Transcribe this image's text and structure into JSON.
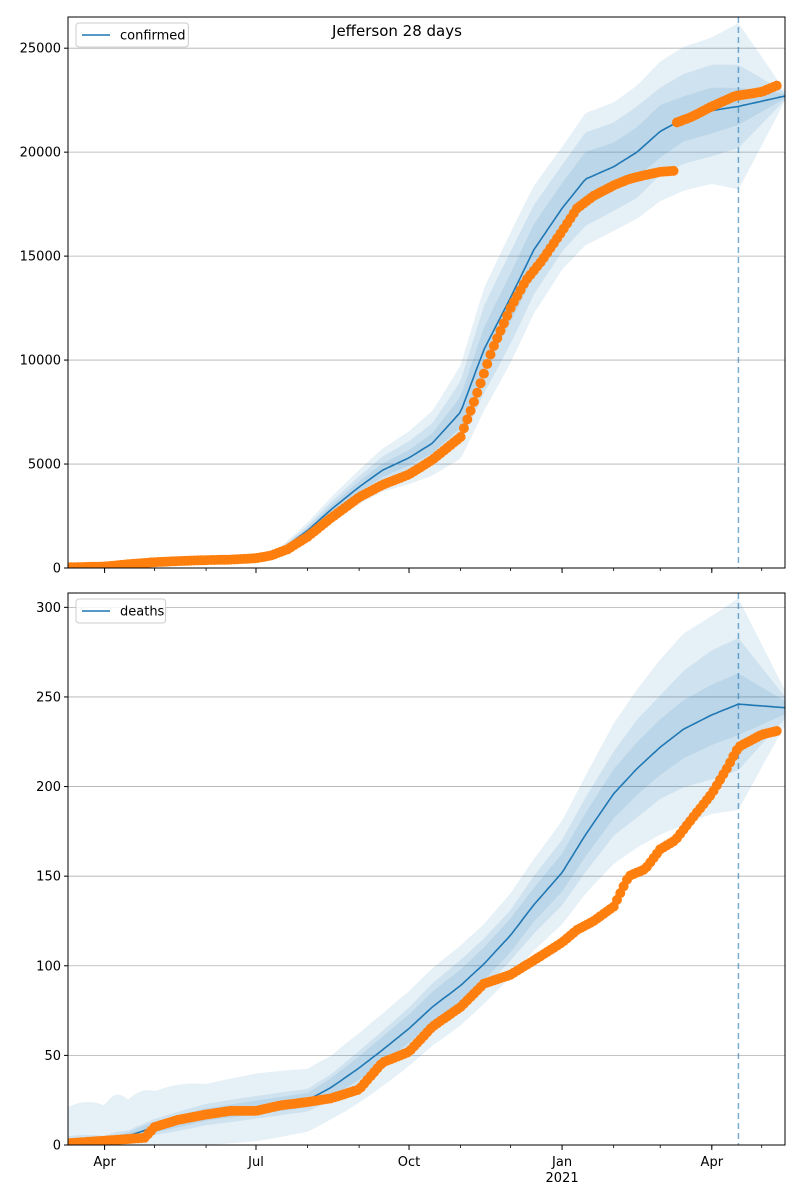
{
  "figure": {
    "title": "Jefferson 28 days",
    "colors": {
      "model_line": "#1f77b4",
      "band": "#1f77b4",
      "observed": "#ff7f0e",
      "grid": "#b0b0b0"
    }
  },
  "chart_data": [
    {
      "type": "line",
      "name": "confirmed-panel",
      "legend": [
        "confirmed"
      ],
      "legend_position": "upper left",
      "grid": "horizontal",
      "xlim": [
        "2020-03-10",
        "2021-05-15"
      ],
      "ylim": [
        0,
        26500
      ],
      "yticks": [
        0,
        5000,
        10000,
        15000,
        20000,
        25000
      ],
      "xtick_labels": [
        "Apr",
        "Jul",
        "Oct",
        "Jan",
        "Apr"
      ],
      "xtick_dates": [
        "2020-04-01",
        "2020-07-01",
        "2020-10-01",
        "2021-01-01",
        "2021-04-01"
      ],
      "forecast_date": "2021-04-17",
      "model": {
        "name": "confirmed",
        "x": [
          "2020-03-10",
          "2020-04-01",
          "2020-05-01",
          "2020-06-01",
          "2020-07-01",
          "2020-07-15",
          "2020-08-01",
          "2020-08-15",
          "2020-09-01",
          "2020-09-15",
          "2020-10-01",
          "2020-10-15",
          "2020-11-01",
          "2020-11-15",
          "2020-12-01",
          "2020-12-15",
          "2021-01-01",
          "2021-01-15",
          "2021-02-01",
          "2021-02-15",
          "2021-03-01",
          "2021-03-15",
          "2021-04-01",
          "2021-04-17",
          "2021-05-15"
        ],
        "y": [
          50,
          80,
          180,
          280,
          450,
          800,
          1800,
          2800,
          3900,
          4700,
          5300,
          6000,
          7500,
          10500,
          13000,
          15300,
          17300,
          18700,
          19300,
          20000,
          21000,
          21600,
          22000,
          22200,
          22700
        ],
        "band_inner_pct": [
          0.05,
          0.05,
          0.05,
          0.05,
          0.06,
          0.07,
          0.07,
          0.07,
          0.07,
          0.07,
          0.07,
          0.08,
          0.1,
          0.1,
          0.09,
          0.08,
          0.07,
          0.07,
          0.06,
          0.06,
          0.06,
          0.05,
          0.05,
          0.04,
          0.005
        ],
        "band_mid_pct": [
          0.1,
          0.1,
          0.1,
          0.1,
          0.11,
          0.12,
          0.13,
          0.13,
          0.13,
          0.14,
          0.15,
          0.16,
          0.2,
          0.2,
          0.17,
          0.14,
          0.12,
          0.12,
          0.11,
          0.11,
          0.1,
          0.1,
          0.1,
          0.09,
          0.008
        ],
        "band_outer_pct": [
          0.2,
          0.2,
          0.2,
          0.2,
          0.2,
          0.21,
          0.21,
          0.21,
          0.21,
          0.22,
          0.24,
          0.26,
          0.3,
          0.28,
          0.24,
          0.2,
          0.17,
          0.17,
          0.16,
          0.16,
          0.16,
          0.16,
          0.16,
          0.18,
          0.01
        ]
      },
      "observed": {
        "x": [
          "2020-03-10",
          "2020-04-01",
          "2020-04-15",
          "2020-05-01",
          "2020-05-15",
          "2020-06-01",
          "2020-06-15",
          "2020-07-01",
          "2020-07-10",
          "2020-07-20",
          "2020-08-01",
          "2020-08-15",
          "2020-09-01",
          "2020-09-15",
          "2020-10-01",
          "2020-10-15",
          "2020-11-01",
          "2020-11-10",
          "2020-11-20",
          "2020-12-01",
          "2020-12-10",
          "2020-12-20",
          "2021-01-01",
          "2021-01-10",
          "2021-01-20",
          "2021-02-01",
          "2021-02-10",
          "2021-02-20",
          "2021-03-01",
          "2021-03-09",
          "2021-03-10",
          "2021-03-20",
          "2021-04-01",
          "2021-04-15",
          "2021-05-01",
          "2021-05-10"
        ],
        "y": [
          30,
          70,
          180,
          280,
          330,
          380,
          400,
          470,
          600,
          900,
          1500,
          2400,
          3400,
          4000,
          4500,
          5200,
          6300,
          8200,
          10500,
          12500,
          13800,
          14800,
          16200,
          17300,
          17900,
          18400,
          18700,
          18900,
          19050,
          19100,
          21400,
          21700,
          22200,
          22700,
          22900,
          23200
        ]
      }
    },
    {
      "type": "line",
      "name": "deaths-panel",
      "legend": [
        "deaths"
      ],
      "legend_position": "upper left",
      "grid": "horizontal",
      "xlim": [
        "2020-03-10",
        "2021-05-15"
      ],
      "ylim": [
        0,
        308
      ],
      "yticks": [
        0,
        50,
        100,
        150,
        200,
        250,
        300
      ],
      "xtick_labels": [
        "Apr",
        "Jul",
        "Oct",
        "Jan",
        "Apr"
      ],
      "xtick_dates": [
        "2020-04-01",
        "2020-07-01",
        "2020-10-01",
        "2021-01-01",
        "2021-04-01"
      ],
      "xtick_year_label": "2021",
      "forecast_date": "2021-04-17",
      "model": {
        "name": "deaths",
        "x": [
          "2020-03-10",
          "2020-04-01",
          "2020-04-15",
          "2020-05-01",
          "2020-06-01",
          "2020-07-01",
          "2020-08-01",
          "2020-08-15",
          "2020-09-01",
          "2020-09-15",
          "2020-10-01",
          "2020-10-15",
          "2020-11-01",
          "2020-11-15",
          "2020-12-01",
          "2020-12-15",
          "2021-01-01",
          "2021-01-15",
          "2021-02-01",
          "2021-02-15",
          "2021-03-01",
          "2021-03-15",
          "2021-04-01",
          "2021-04-17",
          "2021-05-15"
        ],
        "y": [
          1,
          2,
          5,
          10,
          17,
          21,
          25,
          32,
          43,
          53,
          65,
          77,
          89,
          101,
          117,
          134,
          152,
          173,
          196,
          210,
          222,
          232,
          240,
          246,
          244
        ],
        "band_inner_pct": [
          0.6,
          0.6,
          0.4,
          0.3,
          0.2,
          0.18,
          0.16,
          0.16,
          0.15,
          0.14,
          0.12,
          0.11,
          0.1,
          0.09,
          0.08,
          0.07,
          0.07,
          0.07,
          0.07,
          0.07,
          0.07,
          0.07,
          0.07,
          0.07,
          0.015
        ],
        "band_mid_pct": [
          4.0,
          1.5,
          0.6,
          0.45,
          0.35,
          0.3,
          0.25,
          0.23,
          0.22,
          0.2,
          0.18,
          0.17,
          0.16,
          0.14,
          0.12,
          0.12,
          0.12,
          0.12,
          0.12,
          0.13,
          0.13,
          0.14,
          0.15,
          0.15,
          0.025
        ],
        "band_outer_pct": [
          20.0,
          10.0,
          4.0,
          2.0,
          1.0,
          0.9,
          0.7,
          0.55,
          0.45,
          0.38,
          0.32,
          0.28,
          0.25,
          0.22,
          0.2,
          0.19,
          0.19,
          0.19,
          0.2,
          0.21,
          0.22,
          0.23,
          0.23,
          0.24,
          0.04
        ]
      },
      "observed": {
        "x": [
          "2020-03-10",
          "2020-04-10",
          "2020-04-25",
          "2020-05-01",
          "2020-05-15",
          "2020-06-01",
          "2020-06-15",
          "2020-07-01",
          "2020-07-15",
          "2020-08-01",
          "2020-08-15",
          "2020-09-01",
          "2020-09-15",
          "2020-10-01",
          "2020-10-15",
          "2020-11-01",
          "2020-11-15",
          "2020-12-01",
          "2020-12-15",
          "2021-01-01",
          "2021-01-10",
          "2021-01-20",
          "2021-02-01",
          "2021-02-10",
          "2021-02-20",
          "2021-03-01",
          "2021-03-10",
          "2021-03-20",
          "2021-04-01",
          "2021-04-10",
          "2021-04-17",
          "2021-05-01",
          "2021-05-10"
        ],
        "y": [
          1,
          3,
          4,
          10,
          14,
          17,
          19,
          19,
          22,
          24,
          26,
          31,
          46,
          52,
          66,
          77,
          90,
          95,
          103,
          113,
          120,
          125,
          133,
          150,
          154,
          165,
          170,
          182,
          196,
          210,
          222,
          229,
          231
        ]
      }
    }
  ]
}
